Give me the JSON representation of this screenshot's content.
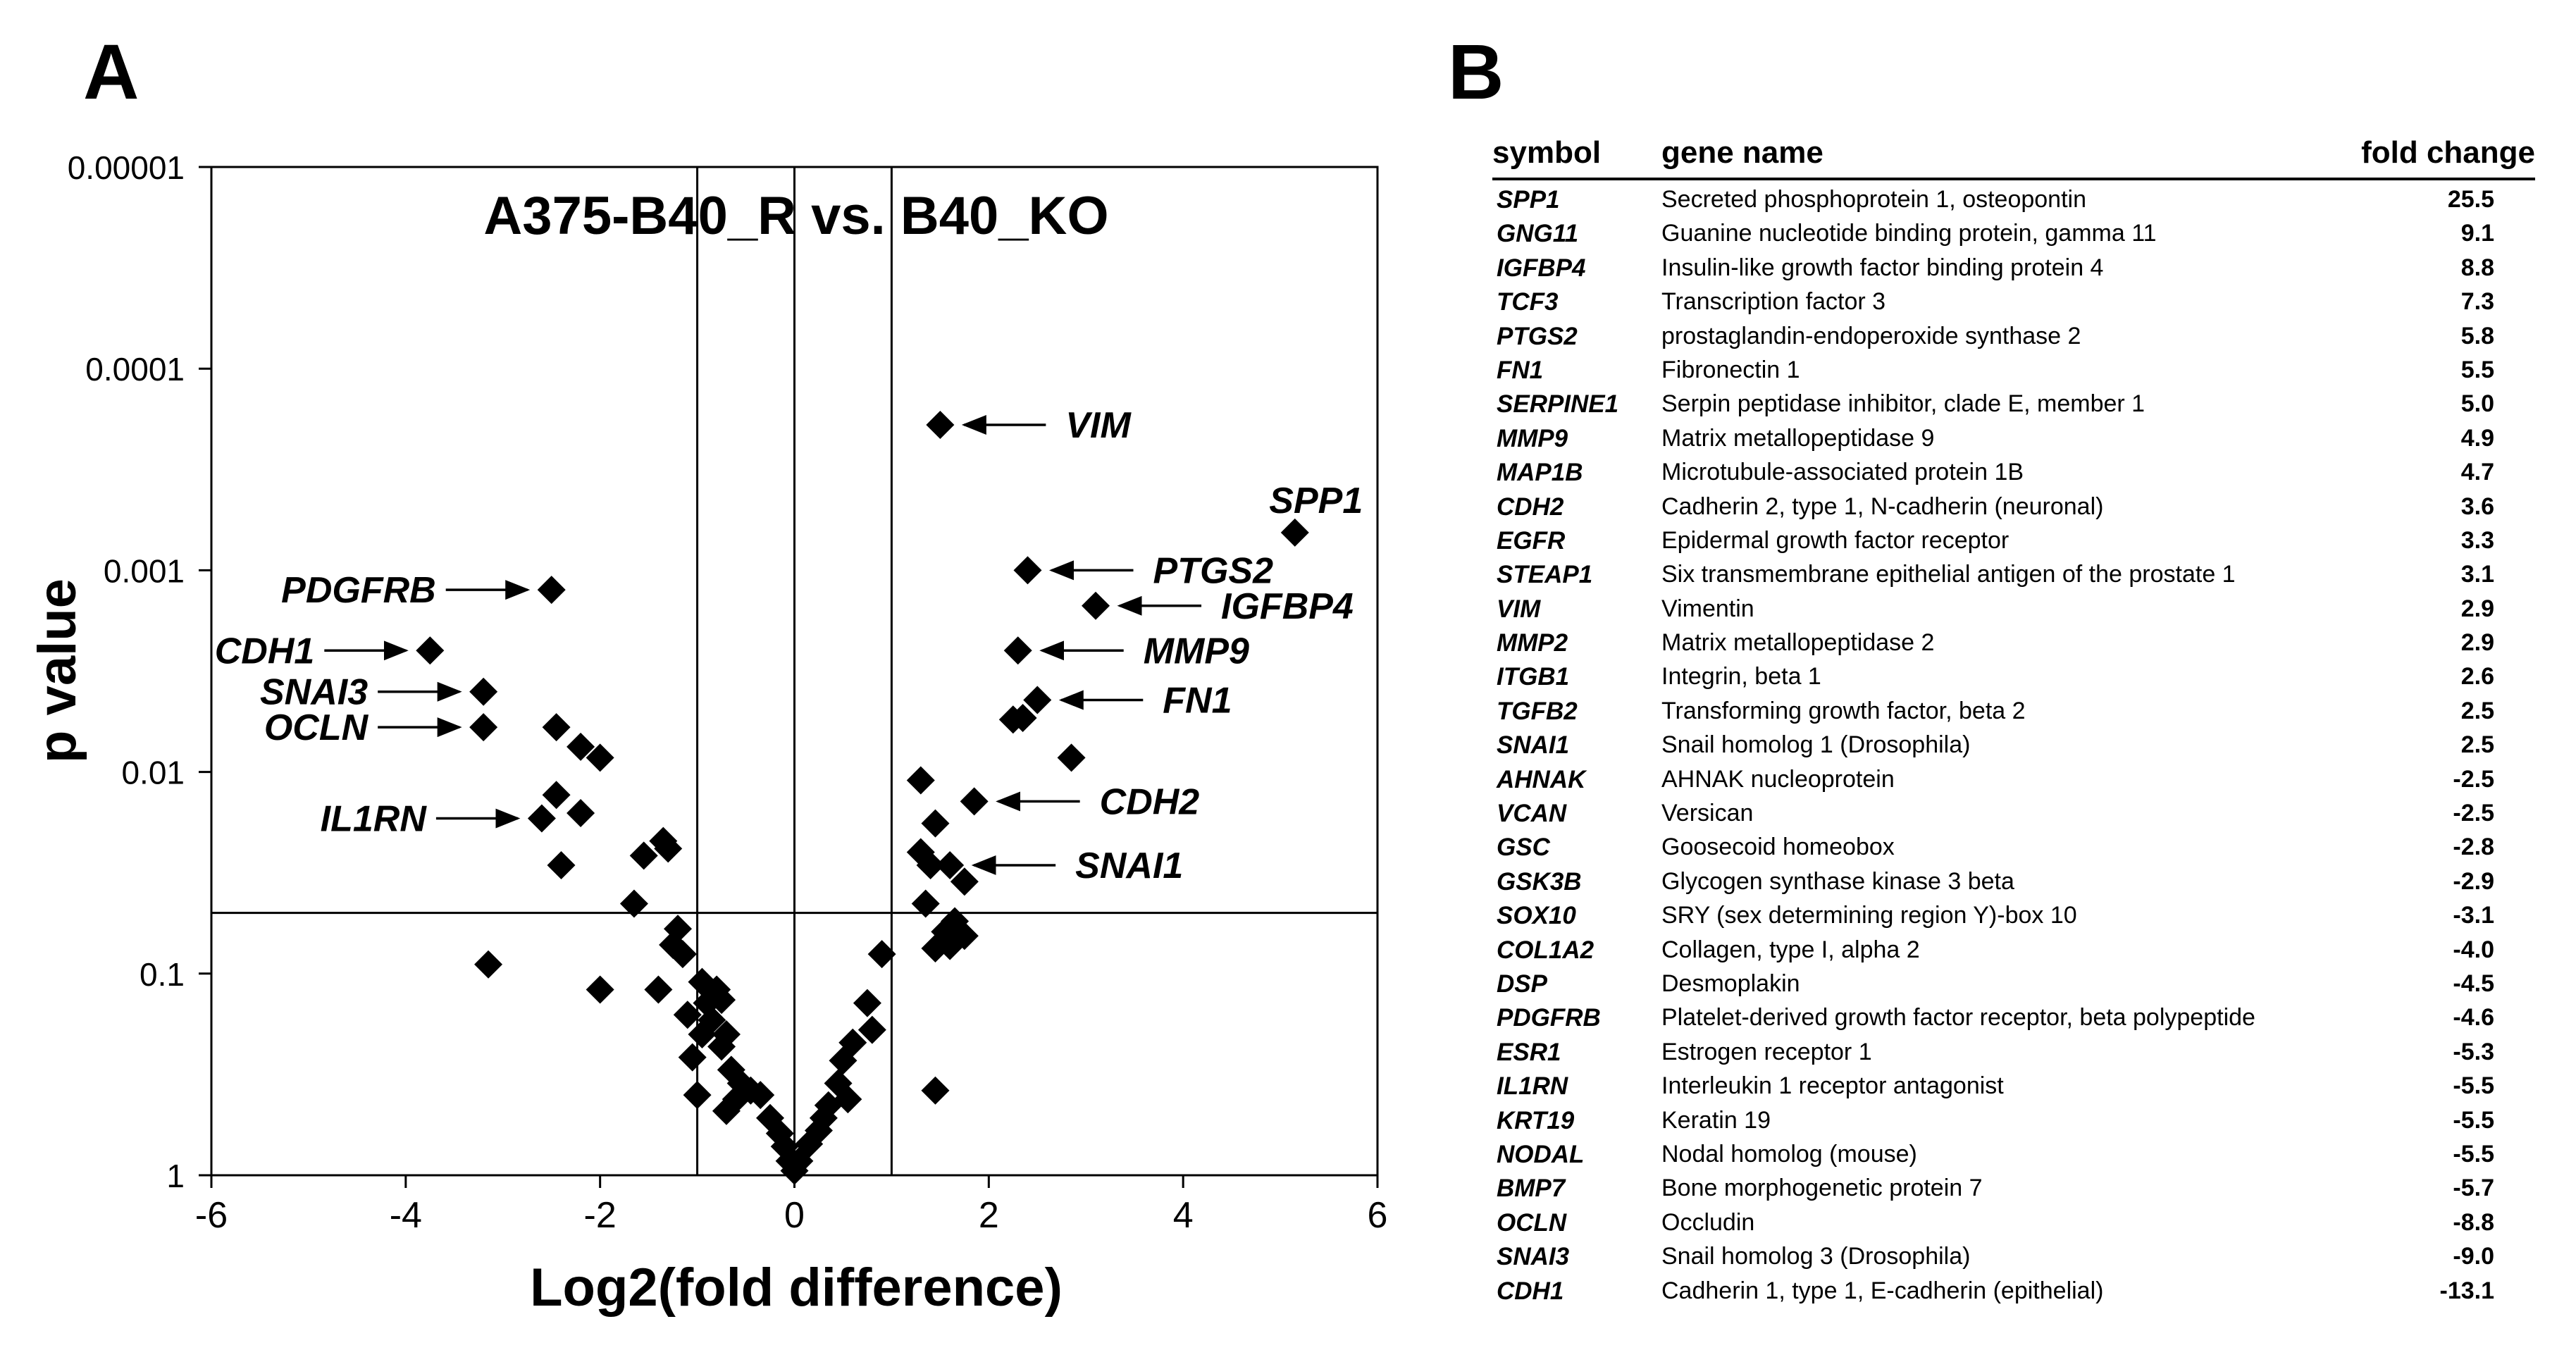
{
  "panel_a": {
    "letter": "A"
  },
  "panel_b": {
    "letter": "B"
  },
  "chart_data": {
    "type": "scatter",
    "title": "A375-B40_R vs. B40_KO",
    "xlabel": "Log2(fold difference)",
    "ylabel": "p value",
    "xlim": [
      -6,
      6
    ],
    "x_ticks": [
      "-6",
      "-4",
      "-2",
      "0",
      "2",
      "4",
      "6"
    ],
    "ylim": [
      1,
      1e-05
    ],
    "y_scale": "log (inverted)",
    "y_ticks": [
      "0.00001",
      "0.0001",
      "0.001",
      "0.01",
      "0.1",
      "1"
    ],
    "reference_lines": {
      "vertical": [
        -1,
        0,
        1
      ],
      "horizontal": [
        0.05
      ]
    },
    "marker": "diamond",
    "marker_color": "#000000",
    "points": [
      {
        "x": 1.5,
        "y": 0.00019
      },
      {
        "x": 5.15,
        "y": 0.00065
      },
      {
        "x": 2.4,
        "y": 0.001
      },
      {
        "x": 3.1,
        "y": 0.0015
      },
      {
        "x": 2.3,
        "y": 0.0025
      },
      {
        "x": 2.5,
        "y": 0.0044
      },
      {
        "x": 2.35,
        "y": 0.0054
      },
      {
        "x": 2.25,
        "y": 0.0055
      },
      {
        "x": 2.85,
        "y": 0.0085
      },
      {
        "x": 1.3,
        "y": 0.011
      },
      {
        "x": 1.85,
        "y": 0.014
      },
      {
        "x": 1.45,
        "y": 0.018
      },
      {
        "x": 1.3,
        "y": 0.025
      },
      {
        "x": 1.4,
        "y": 0.029
      },
      {
        "x": 1.6,
        "y": 0.029
      },
      {
        "x": 1.75,
        "y": 0.035
      },
      {
        "x": 1.35,
        "y": 0.045
      },
      {
        "x": 1.65,
        "y": 0.055
      },
      {
        "x": 1.55,
        "y": 0.062
      },
      {
        "x": 1.75,
        "y": 0.065
      },
      {
        "x": 1.45,
        "y": 0.075
      },
      {
        "x": 1.6,
        "y": 0.073
      },
      {
        "x": 0.9,
        "y": 0.08
      },
      {
        "x": 1.45,
        "y": 0.38
      },
      {
        "x": 0.75,
        "y": 0.14
      },
      {
        "x": 0.8,
        "y": 0.19
      },
      {
        "x": 0.6,
        "y": 0.22
      },
      {
        "x": 0.5,
        "y": 0.27
      },
      {
        "x": 0.45,
        "y": 0.35
      },
      {
        "x": 0.55,
        "y": 0.42
      },
      {
        "x": 0.35,
        "y": 0.45
      },
      {
        "x": 0.3,
        "y": 0.52
      },
      {
        "x": 0.25,
        "y": 0.6
      },
      {
        "x": 0.15,
        "y": 0.7
      },
      {
        "x": 0.05,
        "y": 0.85
      },
      {
        "x": 0.0,
        "y": 0.95
      },
      {
        "x": -0.05,
        "y": 0.85
      },
      {
        "x": -0.1,
        "y": 0.72
      },
      {
        "x": -0.15,
        "y": 0.62
      },
      {
        "x": -0.25,
        "y": 0.52
      },
      {
        "x": -0.35,
        "y": 0.4
      },
      {
        "x": -0.45,
        "y": 0.38
      },
      {
        "x": -0.55,
        "y": 0.35
      },
      {
        "x": -0.65,
        "y": 0.3
      },
      {
        "x": -0.75,
        "y": 0.23
      },
      {
        "x": -0.7,
        "y": 0.2
      },
      {
        "x": -0.85,
        "y": 0.17
      },
      {
        "x": -0.9,
        "y": 0.14
      },
      {
        "x": -0.95,
        "y": 0.2
      },
      {
        "x": -0.75,
        "y": 0.135
      },
      {
        "x": -0.8,
        "y": 0.12
      },
      {
        "x": -0.95,
        "y": 0.11
      },
      {
        "x": -1.1,
        "y": 0.16
      },
      {
        "x": -1.05,
        "y": 0.26
      },
      {
        "x": -0.7,
        "y": 0.48
      },
      {
        "x": -0.6,
        "y": 0.42
      },
      {
        "x": -1.0,
        "y": 0.4
      },
      {
        "x": -1.15,
        "y": 0.08
      },
      {
        "x": -1.2,
        "y": 0.06
      },
      {
        "x": -1.25,
        "y": 0.072
      },
      {
        "x": -1.4,
        "y": 0.12
      },
      {
        "x": -1.3,
        "y": 0.024
      },
      {
        "x": -1.35,
        "y": 0.022
      },
      {
        "x": -1.55,
        "y": 0.026
      },
      {
        "x": -1.65,
        "y": 0.045
      },
      {
        "x": -2.0,
        "y": 0.0085
      },
      {
        "x": -2.0,
        "y": 0.12
      },
      {
        "x": -2.2,
        "y": 0.0075
      },
      {
        "x": -2.2,
        "y": 0.016
      },
      {
        "x": -2.45,
        "y": 0.006
      },
      {
        "x": -2.45,
        "y": 0.013
      },
      {
        "x": -2.4,
        "y": 0.029
      },
      {
        "x": -2.6,
        "y": 0.017
      },
      {
        "x": -2.5,
        "y": 0.00125
      },
      {
        "x": -3.75,
        "y": 0.0025
      },
      {
        "x": -3.2,
        "y": 0.004
      },
      {
        "x": -3.2,
        "y": 0.006
      },
      {
        "x": -3.15,
        "y": 0.09
      }
    ],
    "annotations": [
      {
        "label": "VIM",
        "x": 1.5,
        "y": 0.00019,
        "side": "right"
      },
      {
        "label": "SPP1",
        "x": 5.15,
        "y": 0.00065,
        "side": "above"
      },
      {
        "label": "PTGS2",
        "x": 2.4,
        "y": 0.001,
        "side": "right"
      },
      {
        "label": "IGFBP4",
        "x": 3.1,
        "y": 0.0015,
        "side": "right"
      },
      {
        "label": "MMP9",
        "x": 2.3,
        "y": 0.0025,
        "side": "right"
      },
      {
        "label": "FN1",
        "x": 2.5,
        "y": 0.0044,
        "side": "right"
      },
      {
        "label": "CDH2",
        "x": 1.85,
        "y": 0.014,
        "side": "right"
      },
      {
        "label": "SNAI1",
        "x": 1.6,
        "y": 0.029,
        "side": "right"
      },
      {
        "label": "PDGFRB",
        "x": -2.5,
        "y": 0.00125,
        "side": "left"
      },
      {
        "label": "CDH1",
        "x": -3.75,
        "y": 0.0025,
        "side": "left"
      },
      {
        "label": "SNAI3",
        "x": -3.2,
        "y": 0.004,
        "side": "left"
      },
      {
        "label": "OCLN",
        "x": -3.2,
        "y": 0.006,
        "side": "left"
      },
      {
        "label": "IL1RN",
        "x": -2.6,
        "y": 0.017,
        "side": "left"
      }
    ]
  },
  "table": {
    "headers": {
      "symbol": "symbol",
      "name": "gene name",
      "fold": "fold change"
    },
    "rows": [
      {
        "symbol": "SPP1",
        "name": "Secreted phosphoprotein 1, osteopontin",
        "fold": "25.5"
      },
      {
        "symbol": "GNG11",
        "name": "Guanine nucleotide binding protein, gamma 11",
        "fold": "9.1"
      },
      {
        "symbol": "IGFBP4",
        "name": "Insulin-like growth factor binding protein 4",
        "fold": "8.8"
      },
      {
        "symbol": "TCF3",
        "name": "Transcription factor 3",
        "fold": "7.3"
      },
      {
        "symbol": "PTGS2",
        "name": "prostaglandin-endoperoxide synthase 2",
        "fold": "5.8"
      },
      {
        "symbol": "FN1",
        "name": "Fibronectin 1",
        "fold": "5.5"
      },
      {
        "symbol": "SERPINE1",
        "name": "Serpin peptidase inhibitor, clade E, member 1",
        "fold": "5.0"
      },
      {
        "symbol": "MMP9",
        "name": "Matrix metallopeptidase 9",
        "fold": "4.9"
      },
      {
        "symbol": "MAP1B",
        "name": "Microtubule-associated protein 1B",
        "fold": "4.7"
      },
      {
        "symbol": "CDH2",
        "name": "Cadherin 2, type 1, N-cadherin (neuronal)",
        "fold": "3.6"
      },
      {
        "symbol": "EGFR",
        "name": "Epidermal growth factor receptor",
        "fold": "3.3"
      },
      {
        "symbol": "STEAP1",
        "name": "Six transmembrane epithelial antigen of the prostate 1",
        "fold": "3.1"
      },
      {
        "symbol": "VIM",
        "name": "Vimentin",
        "fold": "2.9"
      },
      {
        "symbol": "MMP2",
        "name": "Matrix metallopeptidase 2",
        "fold": "2.9"
      },
      {
        "symbol": "ITGB1",
        "name": "Integrin, beta 1",
        "fold": "2.6"
      },
      {
        "symbol": "TGFB2",
        "name": "Transforming growth factor, beta 2",
        "fold": "2.5"
      },
      {
        "symbol": "SNAI1",
        "name": "Snail homolog 1 (Drosophila)",
        "fold": "2.5"
      },
      {
        "symbol": "AHNAK",
        "name": "AHNAK nucleoprotein",
        "fold": "-2.5"
      },
      {
        "symbol": "VCAN",
        "name": "Versican",
        "fold": "-2.5"
      },
      {
        "symbol": "GSC",
        "name": "Goosecoid homeobox",
        "fold": "-2.8"
      },
      {
        "symbol": "GSK3B",
        "name": "Glycogen synthase kinase 3 beta",
        "fold": "-2.9"
      },
      {
        "symbol": "SOX10",
        "name": "SRY (sex determining region Y)-box 10",
        "fold": "-3.1"
      },
      {
        "symbol": "COL1A2",
        "name": "Collagen, type I, alpha 2",
        "fold": "-4.0"
      },
      {
        "symbol": "DSP",
        "name": "Desmoplakin",
        "fold": "-4.5"
      },
      {
        "symbol": "PDGFRB",
        "name": "Platelet-derived growth factor receptor, beta polypeptide",
        "fold": "-4.6"
      },
      {
        "symbol": "ESR1",
        "name": "Estrogen receptor 1",
        "fold": "-5.3"
      },
      {
        "symbol": "IL1RN",
        "name": "Interleukin 1 receptor antagonist",
        "fold": "-5.5"
      },
      {
        "symbol": "KRT19",
        "name": "Keratin 19",
        "fold": "-5.5"
      },
      {
        "symbol": "NODAL",
        "name": "Nodal homolog (mouse)",
        "fold": "-5.5"
      },
      {
        "symbol": "BMP7",
        "name": "Bone morphogenetic protein 7",
        "fold": "-5.7"
      },
      {
        "symbol": "OCLN",
        "name": "Occludin",
        "fold": "-8.8"
      },
      {
        "symbol": "SNAI3",
        "name": "Snail homolog 3 (Drosophila)",
        "fold": "-9.0"
      },
      {
        "symbol": "CDH1",
        "name": "Cadherin 1, type 1, E-cadherin (epithelial)",
        "fold": "-13.1"
      }
    ]
  }
}
